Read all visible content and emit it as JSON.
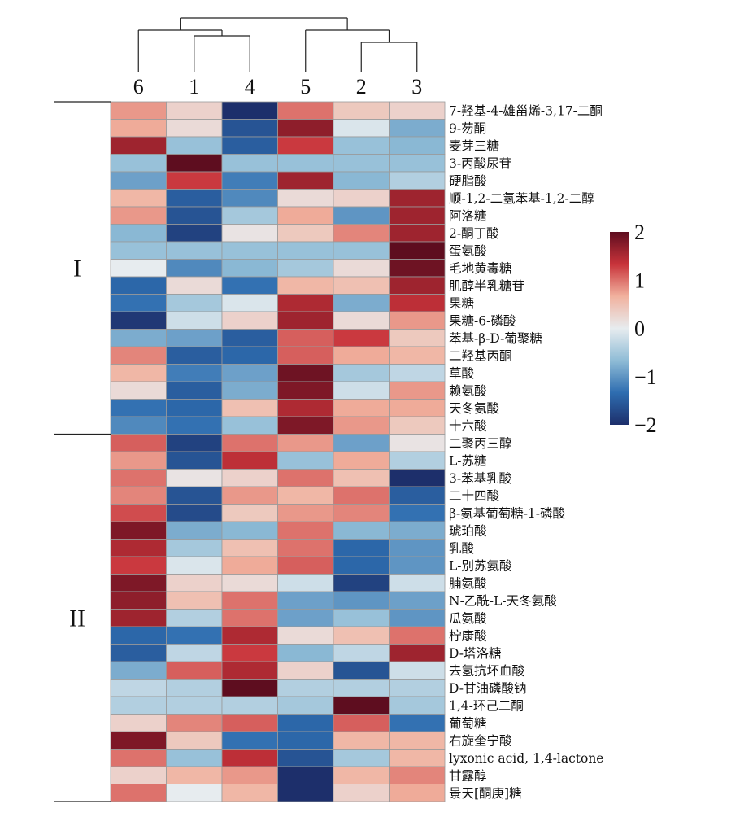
{
  "chart_data": {
    "type": "heatmap",
    "title": "",
    "xlabel": "",
    "ylabel": "",
    "columns": [
      "6",
      "1",
      "4",
      "5",
      "2",
      "3"
    ],
    "rows": [
      "7-羟基-4-雄甾烯-3,17-二酮",
      "9-芴酮",
      "麦芽三糖",
      "3-丙酸尿苷",
      "硬脂酸",
      "顺-1,2-二氢苯基-1,2-二醇",
      "阿洛糖",
      "2-酮丁酸",
      "蛋氨酸",
      "毛地黄毒糖",
      "肌醇半乳糖苷",
      "果糖",
      "果糖-6-磷酸",
      "苯基-β-D-葡聚糖",
      "二羟基丙酮",
      "草酸",
      "赖氨酸",
      "天冬氨酸",
      "十六酸",
      "二聚丙三醇",
      "L-苏糖",
      "3-苯基乳酸",
      "二十四酸",
      "β-氨基葡萄糖-1-磷酸",
      "琥珀酸",
      "乳酸",
      "L-别苏氨酸",
      "脯氨酸",
      "N-乙酰-L-天冬氨酸",
      "瓜氨酸",
      "柠康酸",
      "D-塔洛糖",
      "去氢抗坏血酸",
      "D-甘油磷酸钠",
      "1,4-环己二酮",
      "葡萄糖",
      "右旋奎宁酸",
      "lyxonic acid, 1,4-lactone",
      "甘露醇",
      "景天[酮庚]糖"
    ],
    "values": [
      [
        0.8,
        0.3,
        -2.0,
        1.0,
        0.4,
        0.3
      ],
      [
        0.7,
        0.2,
        -1.6,
        1.7,
        -0.1,
        -0.8
      ],
      [
        1.6,
        -0.6,
        -1.5,
        1.3,
        -0.6,
        -0.7
      ],
      [
        -0.6,
        2.0,
        -0.6,
        -0.6,
        -0.6,
        -0.6
      ],
      [
        -0.9,
        1.3,
        -1.2,
        1.6,
        -0.7,
        -0.4
      ],
      [
        0.6,
        -1.5,
        -1.1,
        0.2,
        0.3,
        1.6
      ],
      [
        0.8,
        -1.6,
        -0.5,
        0.7,
        -1.0,
        1.6
      ],
      [
        -0.7,
        -1.8,
        0.1,
        0.4,
        0.9,
        1.6
      ],
      [
        -0.6,
        -0.6,
        -0.6,
        -0.6,
        -0.6,
        2.0
      ],
      [
        0.0,
        -1.1,
        -0.7,
        -0.5,
        0.2,
        1.9
      ],
      [
        -1.4,
        0.2,
        -1.3,
        0.6,
        0.5,
        1.6
      ],
      [
        -1.3,
        -0.5,
        -0.1,
        1.5,
        -0.8,
        1.4
      ],
      [
        -1.9,
        -0.2,
        0.3,
        1.6,
        0.2,
        0.8
      ],
      [
        -0.8,
        -0.9,
        -1.5,
        1.1,
        1.3,
        0.4
      ],
      [
        0.9,
        -1.5,
        -1.4,
        1.1,
        0.7,
        0.6
      ],
      [
        0.6,
        -1.2,
        -0.9,
        1.9,
        -0.5,
        -0.3
      ],
      [
        0.2,
        -1.5,
        -0.8,
        1.8,
        -0.2,
        0.8
      ],
      [
        -1.3,
        -1.4,
        0.5,
        1.5,
        0.7,
        0.7
      ],
      [
        -1.1,
        -1.3,
        -0.6,
        1.8,
        0.8,
        0.4
      ],
      [
        1.1,
        -1.8,
        1.0,
        0.8,
        -0.9,
        0.1
      ],
      [
        0.8,
        -1.6,
        1.4,
        -0.6,
        0.7,
        -0.4
      ],
      [
        1.0,
        0.1,
        0.3,
        1.0,
        0.5,
        -2.0
      ],
      [
        0.9,
        -1.6,
        0.8,
        0.6,
        1.0,
        -1.5
      ],
      [
        1.2,
        -1.7,
        0.4,
        0.8,
        0.9,
        -1.3
      ],
      [
        1.8,
        -0.8,
        -0.7,
        1.0,
        -0.7,
        -0.8
      ],
      [
        1.5,
        -0.5,
        0.5,
        1.0,
        -1.4,
        -1.0
      ],
      [
        1.3,
        -0.1,
        0.7,
        1.1,
        -1.4,
        -1.0
      ],
      [
        1.8,
        0.3,
        0.2,
        -0.2,
        -1.8,
        -0.2
      ],
      [
        1.7,
        0.5,
        1.0,
        -0.9,
        -1.0,
        -0.9
      ],
      [
        1.6,
        -0.4,
        1.0,
        -0.9,
        -0.6,
        -1.0
      ],
      [
        -1.4,
        -1.3,
        1.5,
        0.2,
        0.5,
        1.0
      ],
      [
        -1.5,
        -0.3,
        1.3,
        -0.7,
        -0.3,
        1.6
      ],
      [
        -0.8,
        1.1,
        1.5,
        0.3,
        -1.6,
        -0.2
      ],
      [
        -0.3,
        -0.4,
        2.0,
        -0.4,
        -0.4,
        -0.4
      ],
      [
        -0.4,
        -0.4,
        -0.4,
        -0.5,
        2.0,
        -0.5
      ],
      [
        0.3,
        0.9,
        1.1,
        -1.4,
        1.1,
        -1.3
      ],
      [
        1.8,
        0.4,
        -1.3,
        -1.4,
        0.6,
        0.6
      ],
      [
        1.0,
        -0.6,
        1.4,
        -1.6,
        -0.5,
        0.6
      ],
      [
        0.3,
        0.6,
        0.8,
        -2.0,
        0.6,
        0.9
      ],
      [
        1.0,
        0.0,
        0.6,
        -2.0,
        0.3,
        0.7
      ]
    ],
    "colorbar": {
      "ticks": [
        2,
        1,
        0,
        -1,
        -2
      ],
      "min": -2,
      "max": 2
    },
    "row_groups": [
      {
        "label": "I",
        "start": 0,
        "end": 18
      },
      {
        "label": "II",
        "start": 19,
        "end": 39
      }
    ],
    "column_dendrogram": "((6,(1,4)),(5,(2,3)))",
    "colors": {
      "stops": [
        "#1d2f6b",
        "#2e6db0",
        "#8fbcd6",
        "#e7ecef",
        "#f1b19e",
        "#c8333a",
        "#5e0d1f"
      ]
    }
  }
}
